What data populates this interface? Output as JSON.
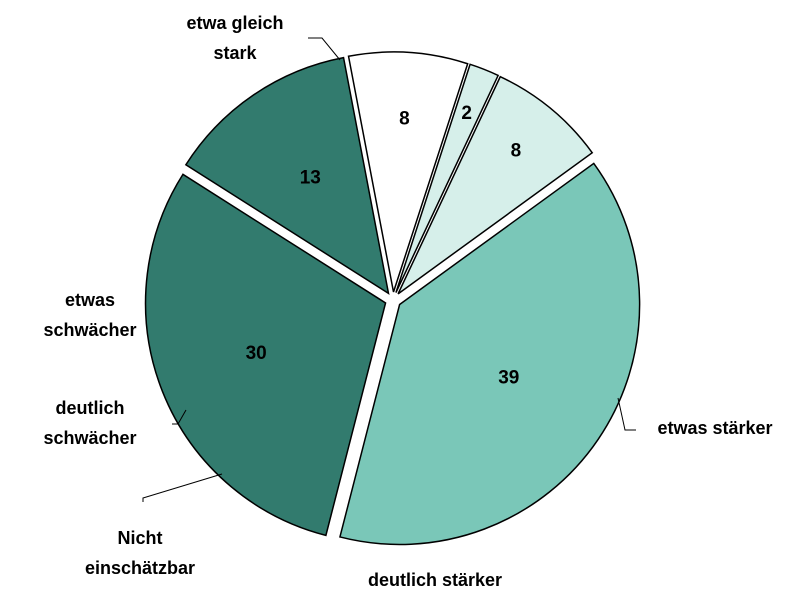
{
  "chart_data": {
    "type": "pie",
    "categories": [
      "etwa gleich stark",
      "etwas stärker",
      "deutlich stärker",
      "Nicht einschätzbar",
      "deutlich schwächer",
      "etwas schwächer"
    ],
    "values": [
      39,
      30,
      13,
      8,
      2,
      8
    ],
    "colors": [
      "#7ac7b8",
      "#327b6e",
      "#327b6e",
      "#ffffff",
      "#d6efea",
      "#d6efea"
    ]
  }
}
